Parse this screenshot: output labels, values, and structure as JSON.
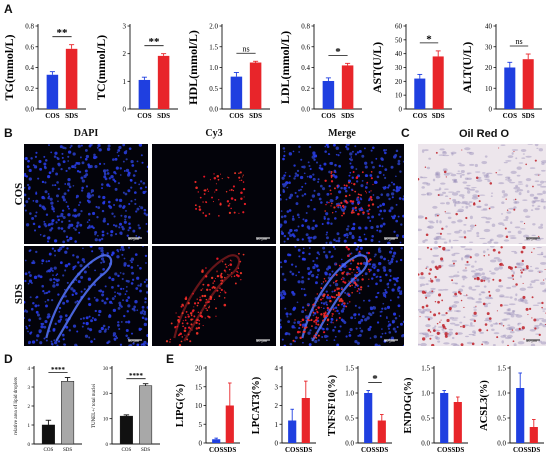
{
  "panel_labels": {
    "A": "A",
    "B": "B",
    "C": "C",
    "D": "D",
    "E": "E"
  },
  "image_panels": {
    "columns": [
      "DAPI",
      "Cy3",
      "Merge"
    ],
    "oil_red_title": "Oil Red O",
    "rows": [
      "COS",
      "SDS"
    ],
    "scale_bar": "50 μm"
  },
  "colors": {
    "cos": "#1f3fe0",
    "sds": "#e8252a",
    "d_cos": "#111111",
    "d_sds": "#a8a8a8"
  },
  "chart_data": [
    {
      "id": "tg",
      "type": "bar",
      "ylabel": "TG(mmol/L)",
      "categories": [
        "COS",
        "SDS"
      ],
      "values": [
        0.33,
        0.58
      ],
      "errors": [
        0.03,
        0.04
      ],
      "ylim": [
        0,
        0.8
      ],
      "yticks": [
        0.0,
        0.2,
        0.4,
        0.6,
        0.8
      ],
      "tick_labels": [
        "0.0",
        "0.2",
        "0.4",
        "0.6",
        "0.8"
      ],
      "sig": "**"
    },
    {
      "id": "tc",
      "type": "bar",
      "ylabel": "TC(mmol/L)",
      "categories": [
        "COS",
        "SDS"
      ],
      "values": [
        1.05,
        1.92
      ],
      "errors": [
        0.1,
        0.08
      ],
      "ylim": [
        0,
        3
      ],
      "yticks": [
        0,
        1,
        2,
        3
      ],
      "tick_labels": [
        "0",
        "1",
        "2",
        "3"
      ],
      "sig": "**"
    },
    {
      "id": "hdl",
      "type": "bar",
      "ylabel": "HDL(mmol/L)",
      "categories": [
        "COS",
        "SDS"
      ],
      "values": [
        0.78,
        1.12
      ],
      "errors": [
        0.1,
        0.03
      ],
      "ylim": [
        0,
        2.0
      ],
      "yticks": [
        0.0,
        0.5,
        1.0,
        1.5,
        2.0
      ],
      "tick_labels": [
        "0.0",
        "0.5",
        "1.0",
        "1.5",
        "2.0"
      ],
      "sig": "ns"
    },
    {
      "id": "ldl",
      "type": "bar",
      "ylabel": "LDL(mmol/L)",
      "categories": [
        "COS",
        "SDS"
      ],
      "values": [
        0.27,
        0.42
      ],
      "errors": [
        0.03,
        0.02
      ],
      "ylim": [
        0,
        0.8
      ],
      "yticks": [
        0.0,
        0.2,
        0.4,
        0.6,
        0.8
      ],
      "tick_labels": [
        "0.0",
        "0.2",
        "0.4",
        "0.6",
        "0.8"
      ],
      "sig": "*"
    },
    {
      "id": "ast",
      "type": "bar",
      "ylabel": "AST(U/L)",
      "categories": [
        "COS",
        "SDS"
      ],
      "values": [
        22,
        38
      ],
      "errors": [
        3,
        4
      ],
      "ylim": [
        0,
        60
      ],
      "yticks": [
        0,
        10,
        20,
        30,
        40,
        50,
        60
      ],
      "tick_labels": [
        "0",
        "10",
        "20",
        "30",
        "40",
        "50",
        "60"
      ],
      "sig": "*"
    },
    {
      "id": "alt",
      "type": "bar",
      "ylabel": "ALT(U/L)",
      "categories": [
        "COS",
        "SDS"
      ],
      "values": [
        20,
        24
      ],
      "errors": [
        2.5,
        2.5
      ],
      "ylim": [
        0,
        40
      ],
      "yticks": [
        0,
        10,
        20,
        30,
        40
      ],
      "tick_labels": [
        "0",
        "10",
        "20",
        "30",
        "40"
      ],
      "sig": "ns"
    },
    {
      "id": "lipid",
      "type": "bar",
      "ylabel": "relative area of lipid droplets",
      "categories": [
        "COS",
        "SDS"
      ],
      "values": [
        1.0,
        3.3
      ],
      "errors": [
        0.25,
        0.2
      ],
      "ylim": [
        0,
        4
      ],
      "yticks": [
        0,
        1,
        2,
        3,
        4
      ],
      "tick_labels": [
        "0",
        "1",
        "2",
        "3",
        "4"
      ],
      "sig": "****"
    },
    {
      "id": "tunel",
      "type": "bar",
      "ylabel": "TUNEL+/ total nuclei",
      "categories": [
        "COS",
        "SDS"
      ],
      "values": [
        11,
        23
      ],
      "errors": [
        0.5,
        0.8
      ],
      "ylim": [
        0,
        30
      ],
      "yticks": [
        0,
        10,
        20,
        30
      ],
      "tick_labels": [
        "0",
        "10",
        "20",
        "30"
      ],
      "sig": "****"
    },
    {
      "id": "lipg",
      "type": "bar",
      "ylabel": "LIPG(%)",
      "categories": [
        "COS",
        "SDS"
      ],
      "values": [
        1.0,
        10.0
      ],
      "errors": [
        0.3,
        6.0
      ],
      "ylim": [
        0,
        20
      ],
      "yticks": [
        0,
        5,
        10,
        15,
        20
      ],
      "tick_labels": [
        "0",
        "5",
        "10",
        "15",
        "20"
      ],
      "sig": ""
    },
    {
      "id": "lpcat3",
      "type": "bar",
      "ylabel": "LPCAT3(%)",
      "categories": [
        "COS",
        "SDS"
      ],
      "values": [
        1.2,
        2.4
      ],
      "errors": [
        0.6,
        0.9
      ],
      "ylim": [
        0,
        4
      ],
      "yticks": [
        0,
        1,
        2,
        3,
        4
      ],
      "tick_labels": [
        "0",
        "1",
        "2",
        "3",
        "4"
      ],
      "sig": ""
    },
    {
      "id": "tnfsf10",
      "type": "bar",
      "ylabel": "TNFSF10(%)",
      "categories": [
        "COS",
        "SDS"
      ],
      "values": [
        1.0,
        0.45
      ],
      "errors": [
        0.05,
        0.12
      ],
      "ylim": [
        0,
        1.5
      ],
      "yticks": [
        0.0,
        0.5,
        1.0,
        1.5
      ],
      "tick_labels": [
        "0.0",
        "0.5",
        "1.0",
        "1.5"
      ],
      "sig": "*"
    },
    {
      "id": "endog",
      "type": "bar",
      "ylabel": "ENDOG(%)",
      "categories": [
        "COS",
        "SDS"
      ],
      "values": [
        1.0,
        0.82
      ],
      "errors": [
        0.05,
        0.1
      ],
      "ylim": [
        0,
        1.5
      ],
      "yticks": [
        0.0,
        0.5,
        1.0,
        1.5
      ],
      "tick_labels": [
        "0.0",
        "0.5",
        "1.0",
        "1.5"
      ],
      "sig": ""
    },
    {
      "id": "acsl3",
      "type": "bar",
      "ylabel": "ACSL3(%)",
      "categories": [
        "COS",
        "SDS"
      ],
      "values": [
        1.1,
        0.32
      ],
      "errors": [
        0.3,
        0.15
      ],
      "ylim": [
        0,
        1.5
      ],
      "yticks": [
        0.0,
        0.5,
        1.0,
        1.5
      ],
      "tick_labels": [
        "0.0",
        "0.5",
        "1.0",
        "1.5"
      ],
      "sig": ""
    }
  ]
}
